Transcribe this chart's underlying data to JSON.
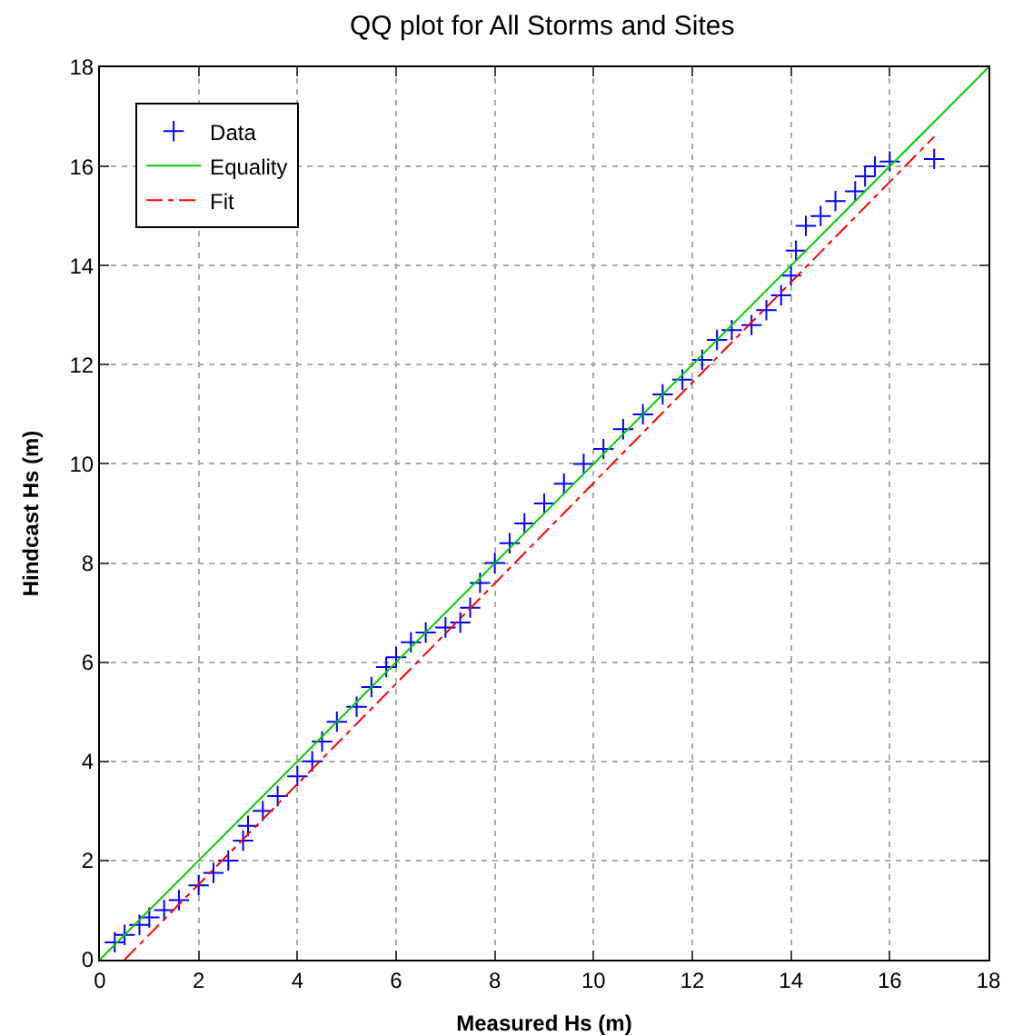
{
  "chart_data": {
    "type": "scatter",
    "title": "QQ plot for All Storms and Sites",
    "xlabel": "Measured Hs (m)",
    "ylabel": "Hindcast Hs (m)",
    "xlim": [
      0,
      18
    ],
    "ylim": [
      0,
      18
    ],
    "xticks": [
      0,
      2,
      4,
      6,
      8,
      10,
      12,
      14,
      16,
      18
    ],
    "yticks": [
      0,
      2,
      4,
      6,
      8,
      10,
      12,
      14,
      16,
      18
    ],
    "grid": true,
    "legend": "top left",
    "marker": "cross",
    "series": [
      {
        "name": "Data",
        "color": "#0000ff",
        "x": [
          0.3,
          0.5,
          0.8,
          1,
          1.3,
          1.6,
          2,
          2.3,
          2.6,
          2.9,
          3,
          3.3,
          3.6,
          4,
          4.3,
          4.5,
          4.8,
          5.2,
          5.5,
          5.8,
          6,
          6.3,
          6.6,
          7,
          7.3,
          7.5,
          7.7,
          8,
          8.3,
          8.6,
          9,
          9.4,
          9.8,
          10.2,
          10.6,
          11,
          11.4,
          11.8,
          12.2,
          12.5,
          12.8,
          13.2,
          13.5,
          13.8,
          14,
          14.1,
          14.3,
          14.6,
          14.9,
          15.3,
          15.5,
          15.7,
          16,
          16.9
        ],
        "values": [
          0.35,
          0.5,
          0.7,
          0.85,
          1.0,
          1.2,
          1.5,
          1.75,
          2.0,
          2.4,
          2.7,
          3.0,
          3.3,
          3.7,
          4.0,
          4.4,
          4.8,
          5.1,
          5.5,
          5.9,
          6.1,
          6.4,
          6.6,
          6.7,
          6.8,
          7.1,
          7.6,
          8.0,
          8.4,
          8.8,
          9.2,
          9.6,
          10.0,
          10.3,
          10.7,
          11.0,
          11.4,
          11.7,
          12.1,
          12.5,
          12.7,
          12.8,
          13.1,
          13.4,
          13.8,
          14.3,
          14.8,
          15.0,
          15.3,
          15.5,
          15.8,
          16.0,
          16.1,
          16.15
        ]
      },
      {
        "name": "Equality",
        "type": "line",
        "color": "#00cc00",
        "marker": "none",
        "line_style": "solid",
        "x": [
          0,
          18
        ],
        "values": [
          0,
          18
        ]
      },
      {
        "name": "Fit",
        "type": "line",
        "color": "#ff0000",
        "marker": "none",
        "line_style": "dashed",
        "x": [
          0.5,
          16.9
        ],
        "values": [
          0,
          16.6
        ]
      }
    ]
  }
}
